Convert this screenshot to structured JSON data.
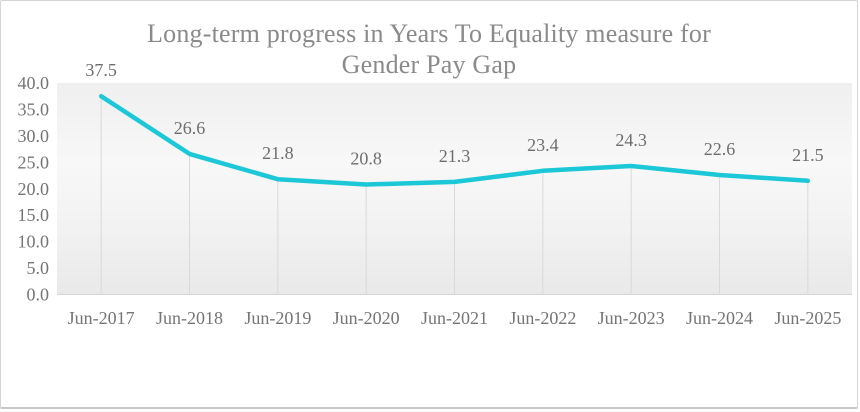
{
  "title_lines": [
    "Long-term progress in Years To Equality measure for",
    "Gender Pay Gap"
  ],
  "chart_data": {
    "type": "line",
    "title": "Long-term progress in Years To Equality measure for Gender Pay Gap",
    "categories": [
      "Jun-2017",
      "Jun-2018",
      "Jun-2019",
      "Jun-2020",
      "Jun-2021",
      "Jun-2022",
      "Jun-2023",
      "Jun-2024",
      "Jun-2025"
    ],
    "values": [
      37.5,
      26.6,
      21.8,
      20.8,
      21.3,
      23.4,
      24.3,
      22.6,
      21.5
    ],
    "data_labels": [
      "37.5",
      "26.6",
      "21.8",
      "20.8",
      "21.3",
      "23.4",
      "24.3",
      "22.6",
      "21.5"
    ],
    "y_ticks": [
      "0.0",
      "5.0",
      "10.0",
      "15.0",
      "20.0",
      "25.0",
      "30.0",
      "35.0",
      "40.0"
    ],
    "ylim": [
      0,
      40
    ],
    "xlabel": "",
    "ylabel": "",
    "legend": "none",
    "grid": "vertical drop lines from each point to x-axis",
    "colors": {
      "line": "#1cc7d7",
      "gridline": "#d9d9d9",
      "axis_line": "#d6d6d6",
      "axis_text": "#757575",
      "data_label_text": "#6e6e6e",
      "title_text": "#8a8a8a",
      "plot_bg_top": "#efefef",
      "plot_bg_mid": "#f8f8f8",
      "plot_bg_bottom": "#e9e9e9"
    }
  }
}
